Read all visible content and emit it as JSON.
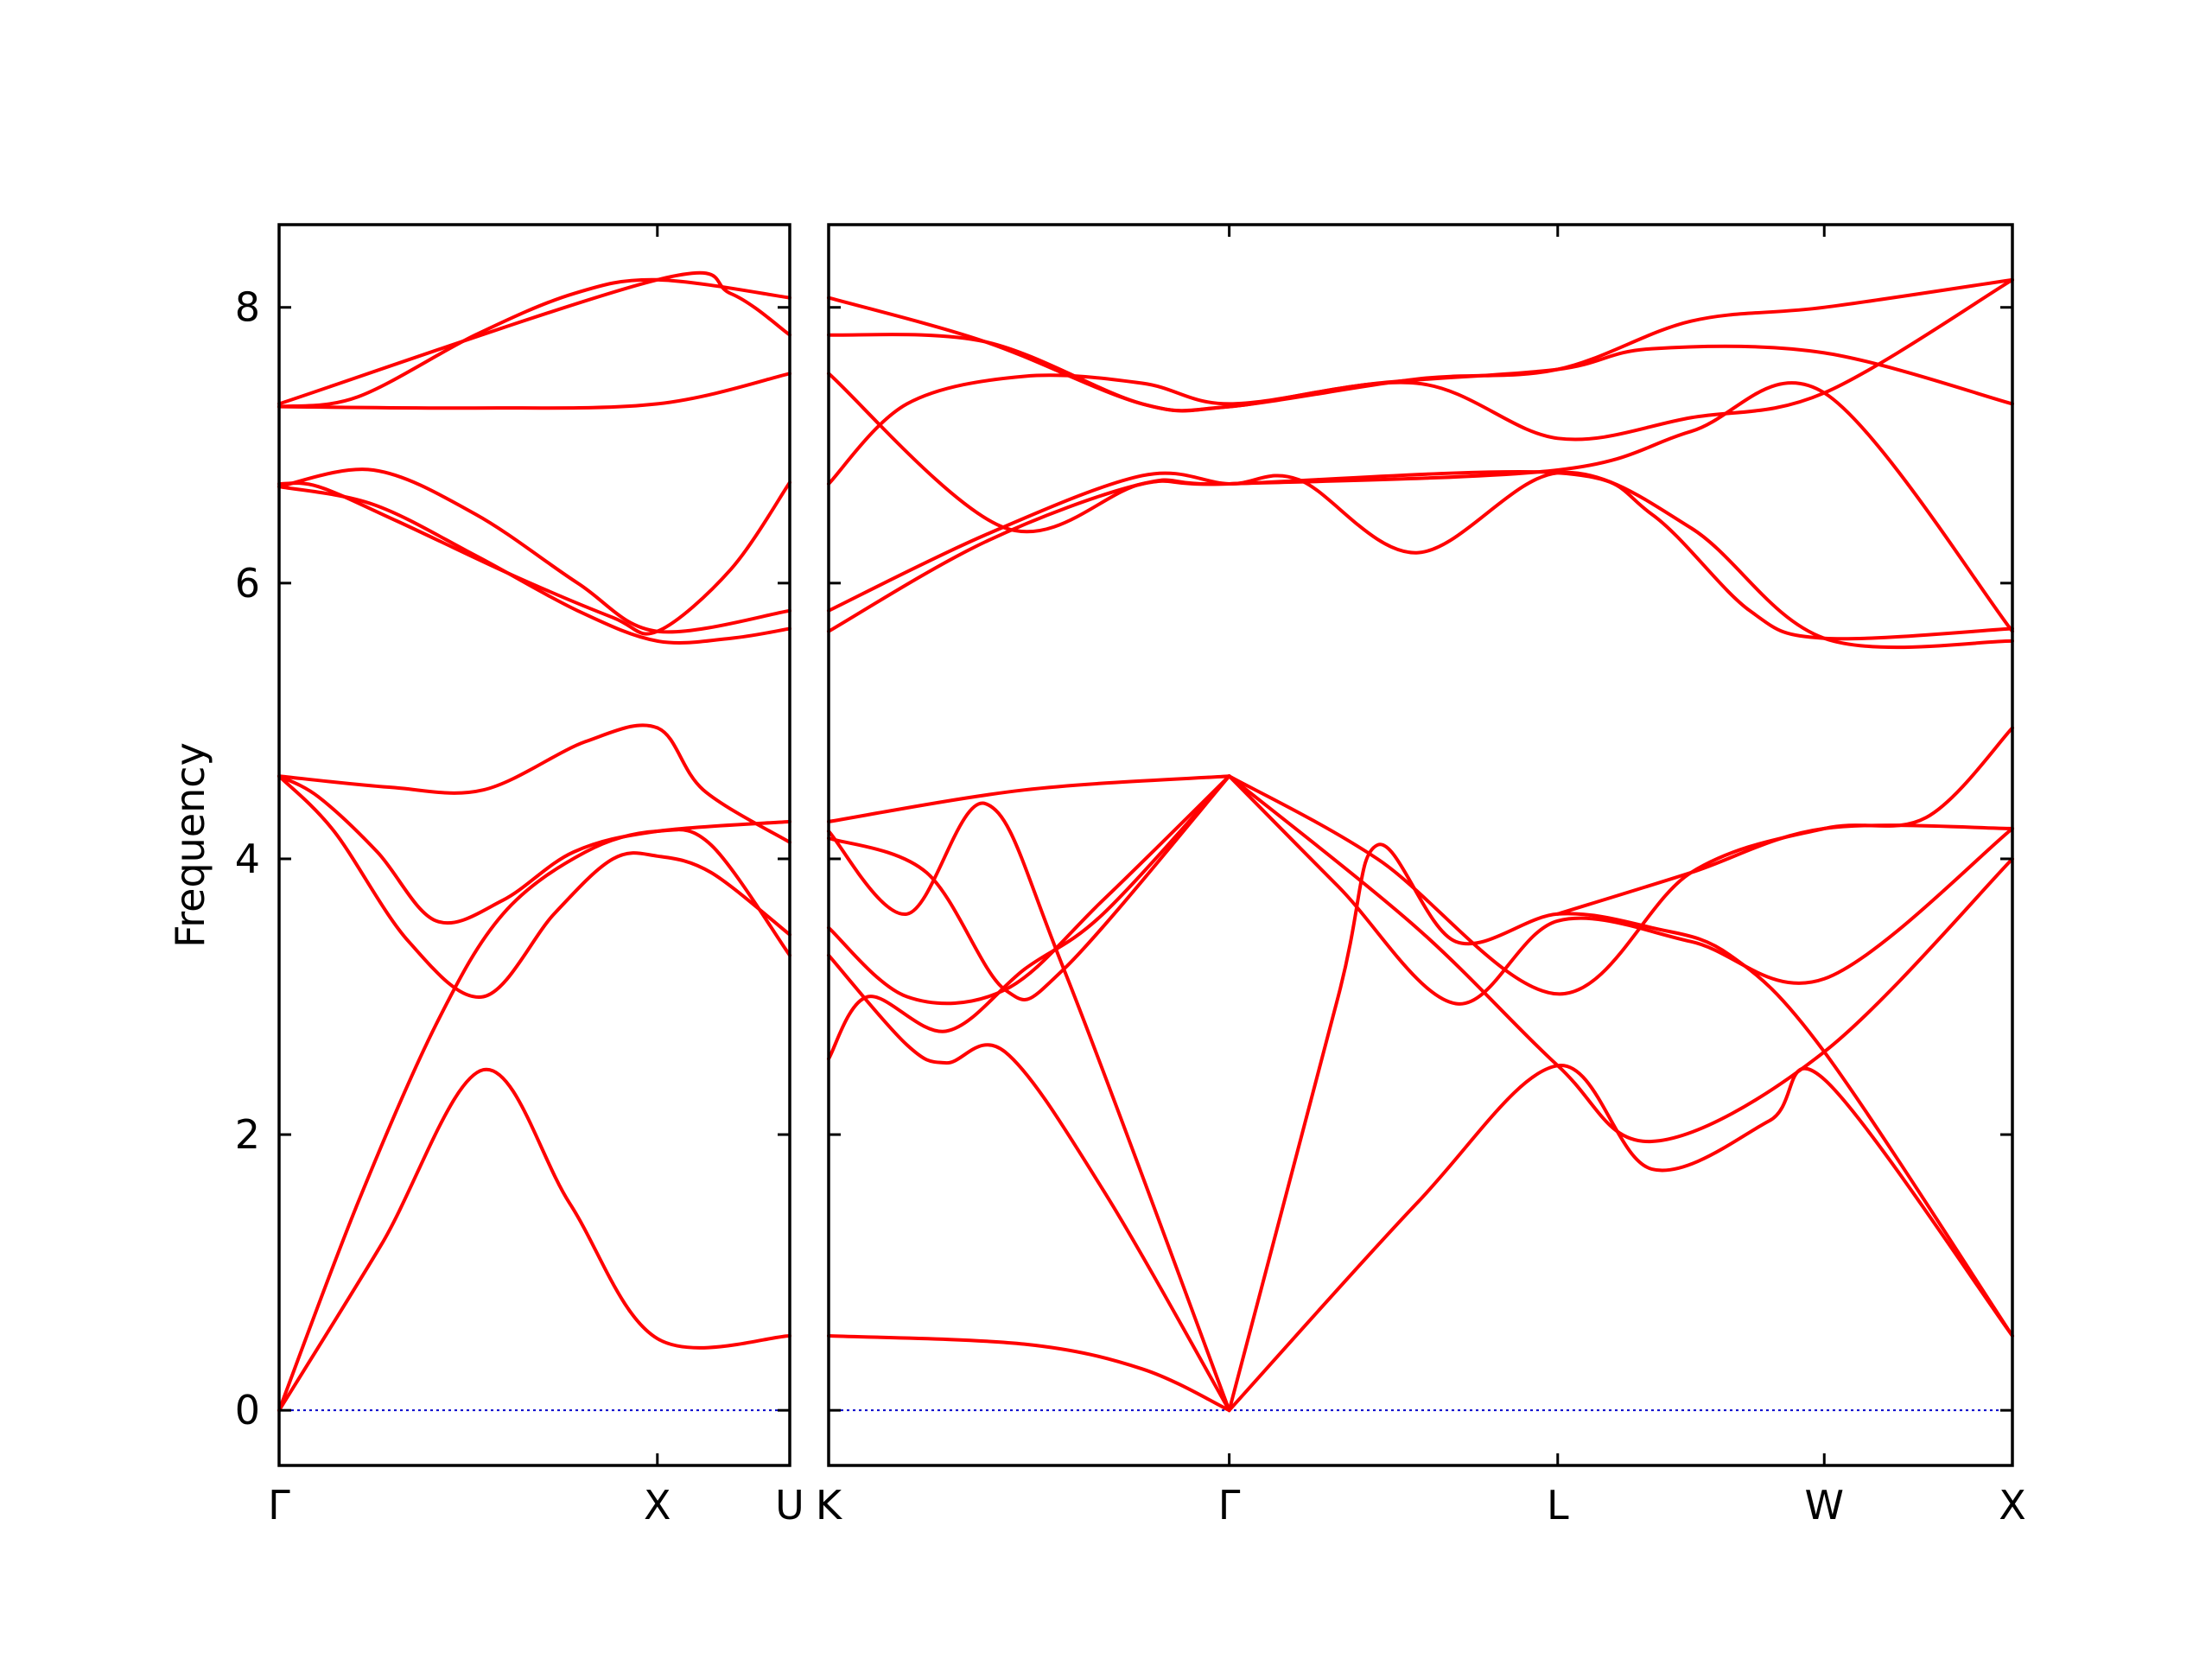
{
  "chart_data": {
    "type": "line",
    "title": "",
    "ylabel": "Frequency",
    "ylim": [
      -0.4,
      8.6
    ],
    "yticks": [
      0,
      2,
      4,
      6,
      8
    ],
    "line_color": "#ff0000",
    "zero_line_color": "#0000cc",
    "grid": false,
    "panels": [
      {
        "name": "left",
        "xlim": [
          0,
          1.3
        ],
        "ticks": [
          {
            "label": "Γ",
            "x": 0.0
          },
          {
            "label": "X",
            "x": 0.963
          },
          {
            "label": "U",
            "x": 1.3
          }
        ],
        "bands": [
          [
            [
              0,
              0
            ],
            [
              0.26,
              1.2
            ],
            [
              0.52,
              2.47
            ],
            [
              0.74,
              1.5
            ],
            [
              0.963,
              0.52
            ],
            [
              1.3,
              0.54
            ]
          ],
          [
            [
              0,
              0
            ],
            [
              0.2,
              1.5
            ],
            [
              0.4,
              2.8
            ],
            [
              0.57,
              3.6
            ],
            [
              0.78,
              4.05
            ],
            [
              0.963,
              4.2
            ],
            [
              1.1,
              4.1
            ],
            [
              1.3,
              3.3
            ]
          ],
          [
            [
              0,
              4.6
            ],
            [
              0.14,
              4.2
            ],
            [
              0.33,
              3.4
            ],
            [
              0.52,
              3.0
            ],
            [
              0.7,
              3.6
            ],
            [
              0.85,
              4.0
            ],
            [
              0.963,
              4.02
            ],
            [
              1.1,
              3.9
            ],
            [
              1.3,
              3.45
            ]
          ],
          [
            [
              0,
              4.6
            ],
            [
              0.28,
              4.52
            ],
            [
              0.52,
              4.5
            ],
            [
              0.78,
              4.85
            ],
            [
              0.963,
              4.95
            ],
            [
              1.08,
              4.5
            ],
            [
              1.3,
              4.12
            ]
          ],
          [
            [
              0,
              4.6
            ],
            [
              0.1,
              4.45
            ],
            [
              0.25,
              4.05
            ],
            [
              0.4,
              3.55
            ],
            [
              0.57,
              3.7
            ],
            [
              0.75,
              4.05
            ],
            [
              0.963,
              4.2
            ],
            [
              1.3,
              4.27
            ]
          ],
          [
            [
              0,
              6.7
            ],
            [
              0.24,
              6.57
            ],
            [
              0.5,
              6.2
            ],
            [
              0.76,
              5.8
            ],
            [
              0.963,
              5.58
            ],
            [
              1.15,
              5.6
            ],
            [
              1.3,
              5.67
            ]
          ],
          [
            [
              0,
              6.7
            ],
            [
              0.24,
              6.82
            ],
            [
              0.5,
              6.5
            ],
            [
              0.76,
              6.0
            ],
            [
              0.963,
              5.65
            ],
            [
              1.3,
              5.8
            ]
          ],
          [
            [
              0,
              6.72
            ],
            [
              0.1,
              6.7
            ],
            [
              0.3,
              6.45
            ],
            [
              0.6,
              6.05
            ],
            [
              0.85,
              5.75
            ],
            [
              0.963,
              5.65
            ],
            [
              1.15,
              6.1
            ],
            [
              1.3,
              6.73
            ]
          ],
          [
            [
              0,
              7.28
            ],
            [
              0.5,
              7.27
            ],
            [
              0.963,
              7.3
            ],
            [
              1.3,
              7.52
            ]
          ],
          [
            [
              0,
              7.28
            ],
            [
              0.2,
              7.35
            ],
            [
              0.5,
              7.8
            ],
            [
              0.75,
              8.1
            ],
            [
              0.963,
              8.2
            ],
            [
              1.3,
              8.07
            ]
          ],
          [
            [
              0,
              7.3
            ],
            [
              0.963,
              8.2
            ],
            [
              1.15,
              8.1
            ],
            [
              1.3,
              7.8
            ]
          ]
        ]
      },
      {
        "name": "right",
        "xlim": [
          0,
          3.02
        ],
        "ticks": [
          {
            "label": "K",
            "x": 0.0
          },
          {
            "label": "Γ",
            "x": 1.022
          },
          {
            "label": "L",
            "x": 1.86
          },
          {
            "label": "W",
            "x": 2.54
          },
          {
            "label": "X",
            "x": 3.02
          }
        ],
        "bands": [
          [
            [
              0,
              0.54
            ],
            [
              0.5,
              0.48
            ],
            [
              0.8,
              0.3
            ],
            [
              1.022,
              0
            ]
          ],
          [
            [
              0,
              3.3
            ],
            [
              0.2,
              2.65
            ],
            [
              0.3,
              2.52
            ],
            [
              0.45,
              2.6
            ],
            [
              0.7,
              1.6
            ],
            [
              1.022,
              0
            ]
          ],
          [
            [
              0,
              2.55
            ],
            [
              0.1,
              3.0
            ],
            [
              0.3,
              2.75
            ],
            [
              0.5,
              3.2
            ],
            [
              0.7,
              3.6
            ],
            [
              1.022,
              4.6
            ]
          ],
          [
            [
              0,
              3.5
            ],
            [
              0.2,
              3.0
            ],
            [
              0.45,
              3.05
            ],
            [
              0.7,
              3.7
            ],
            [
              1.022,
              4.6
            ]
          ],
          [
            [
              0,
              4.2
            ],
            [
              0.2,
              3.6
            ],
            [
              0.4,
              4.4
            ],
            [
              0.6,
              3.2
            ],
            [
              1.022,
              0
            ]
          ],
          [
            [
              0,
              4.15
            ],
            [
              0.25,
              3.9
            ],
            [
              0.45,
              3.05
            ],
            [
              0.6,
              3.2
            ],
            [
              1.022,
              4.6
            ]
          ],
          [
            [
              0,
              4.27
            ],
            [
              0.5,
              4.5
            ],
            [
              1.022,
              4.6
            ]
          ],
          [
            [
              1.022,
              0
            ],
            [
              1.3,
              3.0
            ],
            [
              1.4,
              4.1
            ],
            [
              1.6,
              3.4
            ],
            [
              1.86,
              3.6
            ],
            [
              2.1,
              3.5
            ],
            [
              2.3,
              3.3
            ],
            [
              2.54,
              2.6
            ],
            [
              3.02,
              0.54
            ]
          ],
          [
            [
              1.022,
              0
            ],
            [
              1.5,
              1.5
            ],
            [
              1.86,
              2.5
            ],
            [
              2.1,
              1.75
            ],
            [
              2.4,
              2.1
            ],
            [
              2.54,
              2.4
            ],
            [
              3.02,
              0.54
            ]
          ],
          [
            [
              1.022,
              4.6
            ],
            [
              1.5,
              3.5
            ],
            [
              1.86,
              2.5
            ],
            [
              2.1,
              1.95
            ],
            [
              2.54,
              2.6
            ],
            [
              3.02,
              4.0
            ]
          ],
          [
            [
              1.022,
              4.6
            ],
            [
              1.3,
              3.8
            ],
            [
              1.6,
              2.95
            ],
            [
              1.86,
              3.55
            ],
            [
              2.2,
              3.4
            ],
            [
              2.54,
              3.13
            ],
            [
              3.02,
              4.22
            ]
          ],
          [
            [
              1.022,
              4.6
            ],
            [
              1.4,
              4.0
            ],
            [
              1.86,
              3.02
            ],
            [
              2.2,
              3.9
            ],
            [
              2.54,
              4.22
            ],
            [
              2.8,
              4.3
            ],
            [
              3.02,
              4.95
            ]
          ],
          [
            [
              1.86,
              3.6
            ],
            [
              2.2,
              3.9
            ],
            [
              2.54,
              4.22
            ],
            [
              3.02,
              4.22
            ]
          ],
          [
            [
              0,
              5.65
            ],
            [
              0.4,
              6.3
            ],
            [
              0.8,
              6.72
            ],
            [
              1.022,
              6.72
            ],
            [
              1.86,
              6.8
            ],
            [
              2.1,
              6.5
            ],
            [
              2.35,
              5.8
            ],
            [
              2.54,
              5.6
            ],
            [
              3.02,
              5.67
            ]
          ],
          [
            [
              0,
              5.8
            ],
            [
              0.4,
              6.35
            ],
            [
              0.8,
              6.78
            ],
            [
              1.022,
              6.72
            ],
            [
              1.2,
              6.75
            ],
            [
              1.5,
              6.22
            ],
            [
              1.86,
              6.8
            ],
            [
              2.2,
              6.4
            ],
            [
              2.54,
              5.6
            ],
            [
              3.02,
              5.58
            ]
          ],
          [
            [
              0,
              6.72
            ],
            [
              0.2,
              7.3
            ],
            [
              0.5,
              7.5
            ],
            [
              0.8,
              7.45
            ],
            [
              1.022,
              7.3
            ],
            [
              1.4,
              7.45
            ],
            [
              1.86,
              7.55
            ],
            [
              2.1,
              7.7
            ],
            [
              2.54,
              7.67
            ],
            [
              3.02,
              7.3
            ]
          ],
          [
            [
              0,
              7.52
            ],
            [
              0.45,
              6.4
            ],
            [
              0.8,
              6.72
            ],
            [
              1.022,
              6.72
            ],
            [
              1.86,
              6.82
            ],
            [
              2.2,
              7.1
            ],
            [
              2.54,
              7.38
            ],
            [
              3.02,
              5.65
            ]
          ],
          [
            [
              0,
              7.8
            ],
            [
              0.4,
              7.75
            ],
            [
              0.8,
              7.3
            ],
            [
              1.022,
              7.28
            ],
            [
              1.5,
              7.45
            ],
            [
              1.86,
              7.05
            ],
            [
              2.2,
              7.2
            ],
            [
              2.54,
              7.38
            ],
            [
              3.02,
              8.2
            ]
          ],
          [
            [
              0,
              8.07
            ],
            [
              0.4,
              7.75
            ],
            [
              0.8,
              7.3
            ],
            [
              1.022,
              7.28
            ],
            [
              1.5,
              7.48
            ],
            [
              1.86,
              7.55
            ],
            [
              2.2,
              7.9
            ],
            [
              2.54,
              8.0
            ],
            [
              3.02,
              8.2
            ]
          ]
        ]
      }
    ]
  }
}
